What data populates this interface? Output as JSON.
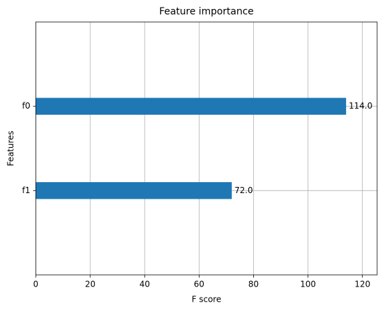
{
  "chart_data": {
    "type": "barh",
    "title": "Feature importance",
    "xlabel": "F score",
    "ylabel": "Features",
    "categories": [
      "f0",
      "f1"
    ],
    "values": [
      114,
      72
    ],
    "value_labels": [
      "114.0",
      "72.0"
    ],
    "color": "#1f77b4",
    "xlim": [
      0,
      125.4
    ],
    "xticks": [
      0,
      20,
      40,
      60,
      80,
      100,
      120
    ],
    "grid": true
  }
}
